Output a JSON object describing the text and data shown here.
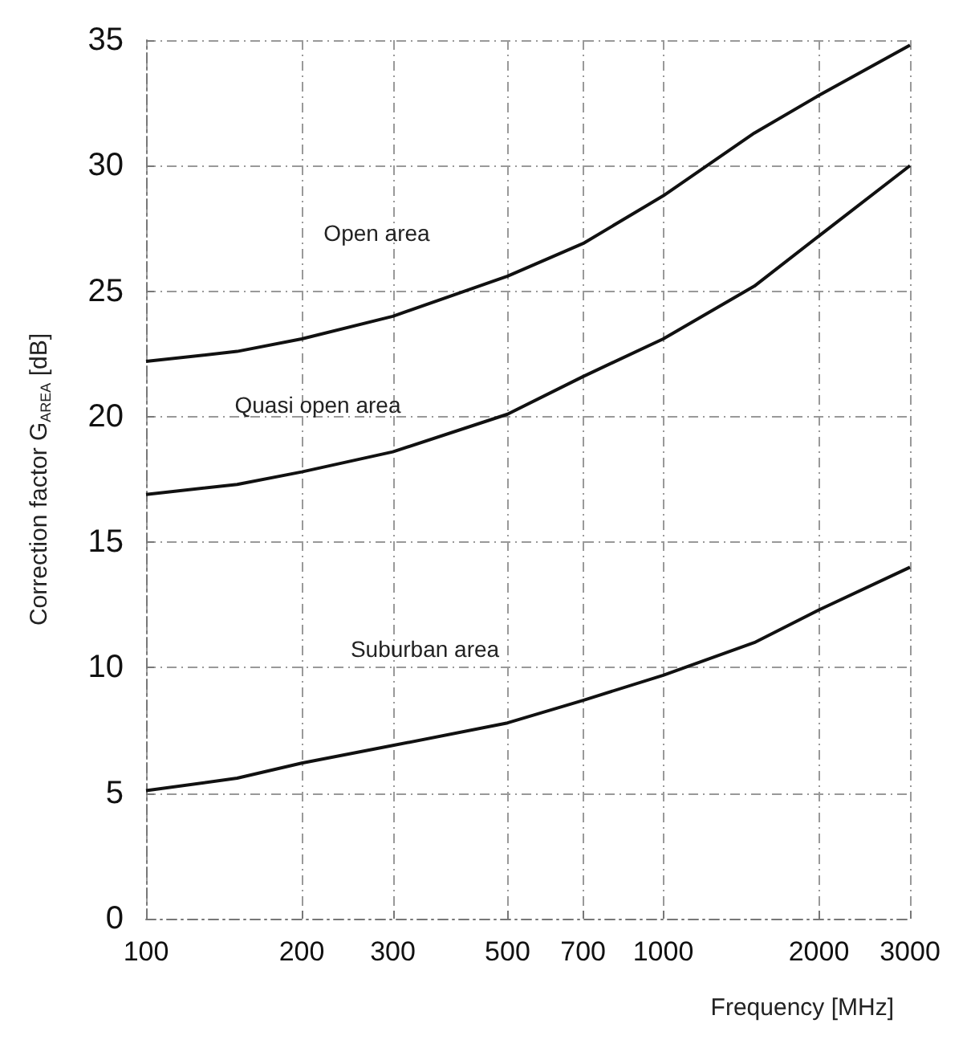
{
  "chart_data": {
    "type": "line",
    "xlabel": "Frequency [MHz]",
    "ylabel": "Correction factor G$_{AREA}$ [dB]",
    "log": "x",
    "xlim": [
      100,
      3000
    ],
    "xticks": [
      100,
      200,
      300,
      500,
      700,
      1000,
      2000,
      3000
    ],
    "ylim": [
      0,
      35
    ],
    "yticks": [
      0,
      5,
      10,
      15,
      20,
      25,
      30,
      35
    ],
    "grid": true,
    "legend": false,
    "marker": "none",
    "line_style": "solid",
    "x": [
      100,
      150,
      200,
      300,
      500,
      700,
      1000,
      1500,
      2000,
      3000
    ],
    "series": [
      {
        "name": "Open area",
        "color": "#111111",
        "values": [
          22.2,
          22.6,
          23.1,
          24.0,
          25.6,
          26.9,
          28.8,
          31.3,
          32.8,
          34.8
        ]
      },
      {
        "name": "Quasi open area",
        "color": "#111111",
        "values": [
          16.9,
          17.3,
          17.8,
          18.6,
          20.1,
          21.6,
          23.1,
          25.2,
          27.2,
          30.0
        ]
      },
      {
        "name": "Suburban area",
        "color": "#111111",
        "values": [
          5.1,
          5.6,
          6.2,
          6.9,
          7.8,
          8.7,
          9.7,
          11.0,
          12.3,
          14.0
        ]
      }
    ]
  }
}
